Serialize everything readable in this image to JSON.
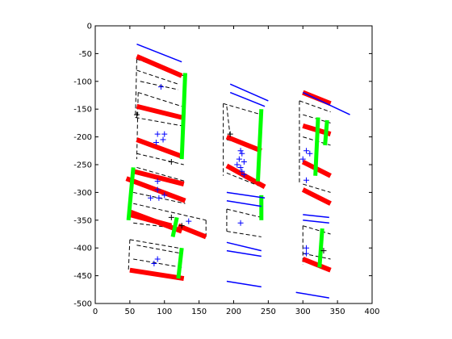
{
  "chart_data": {
    "type": "line",
    "title": "",
    "xlabel": "",
    "ylabel": "",
    "xlim": [
      0,
      400
    ],
    "ylim": [
      -500,
      0
    ],
    "grid": false,
    "legend": "none",
    "x_ticks": [
      "0",
      "50",
      "100",
      "150",
      "200",
      "250",
      "300",
      "350",
      "400"
    ],
    "x_tick_values": [
      0,
      50,
      100,
      150,
      200,
      250,
      300,
      350,
      400
    ],
    "y_ticks": [
      "0",
      "-50",
      "-100",
      "-150",
      "-200",
      "-250",
      "-300",
      "-350",
      "-400",
      "-450",
      "-500"
    ],
    "y_tick_values": [
      0,
      -50,
      -100,
      -150,
      -200,
      -250,
      -300,
      -350,
      -400,
      -450,
      -500
    ],
    "colors": {
      "blue": "#0000ff",
      "red": "#ff0000",
      "green": "#00ff00",
      "black": "#000000"
    },
    "series": [
      {
        "style": "blue-line",
        "segments": [
          [
            [
              60,
              -33
            ],
            [
              125,
              -65
            ]
          ],
          [
            [
              195,
              -105
            ],
            [
              250,
              -135
            ]
          ],
          [
            [
              195,
              -120
            ],
            [
              245,
              -145
            ]
          ],
          [
            [
              300,
              -120
            ],
            [
              368,
              -160
            ]
          ],
          [
            [
              190,
              -300
            ],
            [
              245,
              -310
            ]
          ],
          [
            [
              190,
              -315
            ],
            [
              240,
              -325
            ]
          ],
          [
            [
              300,
              -340
            ],
            [
              338,
              -345
            ]
          ],
          [
            [
              300,
              -350
            ],
            [
              338,
              -355
            ]
          ],
          [
            [
              190,
              -390
            ],
            [
              240,
              -405
            ]
          ],
          [
            [
              190,
              -405
            ],
            [
              240,
              -415
            ]
          ],
          [
            [
              190,
              -460
            ],
            [
              240,
              -470
            ]
          ],
          [
            [
              290,
              -480
            ],
            [
              338,
              -490
            ]
          ]
        ]
      },
      {
        "style": "red-thick",
        "segments": [
          [
            [
              60,
              -55
            ],
            [
              125,
              -90
            ]
          ],
          [
            [
              60,
              -145
            ],
            [
              125,
              -165
            ]
          ],
          [
            [
              60,
              -205
            ],
            [
              125,
              -235
            ]
          ],
          [
            [
              55,
              -262
            ],
            [
              128,
              -285
            ]
          ],
          [
            [
              45,
              -275
            ],
            [
              130,
              -315
            ]
          ],
          [
            [
              50,
              -335
            ],
            [
              125,
              -370
            ]
          ],
          [
            [
              120,
              -360
            ],
            [
              160,
              -380
            ]
          ],
          [
            [
              50,
              -340
            ],
            [
              110,
              -360
            ]
          ],
          [
            [
              50,
              -440
            ],
            [
              128,
              -455
            ]
          ],
          [
            [
              190,
              -200
            ],
            [
              240,
              -225
            ]
          ],
          [
            [
              190,
              -252
            ],
            [
              245,
              -290
            ]
          ],
          [
            [
              300,
              -120
            ],
            [
              340,
              -140
            ]
          ],
          [
            [
              300,
              -180
            ],
            [
              340,
              -195
            ]
          ],
          [
            [
              300,
              -245
            ],
            [
              340,
              -270
            ]
          ],
          [
            [
              300,
              -295
            ],
            [
              340,
              -320
            ]
          ],
          [
            [
              300,
              -420
            ],
            [
              340,
              -440
            ]
          ]
        ]
      },
      {
        "style": "green-thick",
        "segments": [
          [
            [
              130,
              -85
            ],
            [
              125,
              -240
            ]
          ],
          [
            [
              55,
              -255
            ],
            [
              48,
              -350
            ]
          ],
          [
            [
              118,
              -345
            ],
            [
              112,
              -380
            ]
          ],
          [
            [
              125,
              -400
            ],
            [
              120,
              -455
            ]
          ],
          [
            [
              240,
              -150
            ],
            [
              235,
              -280
            ]
          ],
          [
            [
              240,
              -350
            ],
            [
              240,
              -305
            ]
          ],
          [
            [
              322,
              -165
            ],
            [
              318,
              -270
            ]
          ],
          [
            [
              335,
              -170
            ],
            [
              332,
              -215
            ]
          ],
          [
            [
              328,
              -365
            ],
            [
              324,
              -435
            ]
          ]
        ]
      },
      {
        "style": "black-dashed",
        "segments": [
          [
            [
              60,
              -60
            ],
            [
              128,
              -90
            ]
          ],
          [
            [
              60,
              -60
            ],
            [
              58,
              -165
            ]
          ],
          [
            [
              60,
              -80
            ],
            [
              120,
              -105
            ]
          ],
          [
            [
              58,
              -165
            ],
            [
              125,
              -180
            ]
          ],
          [
            [
              62,
              -120
            ],
            [
              125,
              -145
            ]
          ],
          [
            [
              62,
              -120
            ],
            [
              60,
              -240
            ]
          ],
          [
            [
              60,
              -230
            ],
            [
              128,
              -250
            ]
          ],
          [
            [
              65,
              -100
            ],
            [
              120,
              -115
            ]
          ],
          [
            [
              60,
              -255
            ],
            [
              130,
              -280
            ]
          ],
          [
            [
              55,
              -300
            ],
            [
              130,
              -320
            ]
          ],
          [
            [
              55,
              -320
            ],
            [
              160,
              -350
            ]
          ],
          [
            [
              160,
              -350
            ],
            [
              160,
              -380
            ]
          ],
          [
            [
              55,
              -355
            ],
            [
              120,
              -365
            ]
          ],
          [
            [
              50,
              -385
            ],
            [
              120,
              -400
            ]
          ],
          [
            [
              50,
              -385
            ],
            [
              48,
              -440
            ]
          ],
          [
            [
              60,
              -395
            ],
            [
              125,
              -410
            ]
          ],
          [
            [
              55,
              -420
            ],
            [
              125,
              -435
            ]
          ],
          [
            [
              185,
              -140
            ],
            [
              240,
              -160
            ]
          ],
          [
            [
              185,
              -140
            ],
            [
              185,
              -270
            ]
          ],
          [
            [
              190,
              -145
            ],
            [
              195,
              -200
            ]
          ],
          [
            [
              190,
              -205
            ],
            [
              240,
              -220
            ]
          ],
          [
            [
              190,
              -265
            ],
            [
              240,
              -290
            ]
          ],
          [
            [
              190,
              -330
            ],
            [
              240,
              -345
            ]
          ],
          [
            [
              190,
              -330
            ],
            [
              190,
              -370
            ]
          ],
          [
            [
              190,
              -370
            ],
            [
              240,
              -380
            ]
          ],
          [
            [
              295,
              -135
            ],
            [
              340,
              -155
            ]
          ],
          [
            [
              295,
              -135
            ],
            [
              295,
              -285
            ]
          ],
          [
            [
              300,
              -160
            ],
            [
              340,
              -175
            ]
          ],
          [
            [
              300,
              -200
            ],
            [
              340,
              -215
            ]
          ],
          [
            [
              300,
              -285
            ],
            [
              340,
              -300
            ]
          ],
          [
            [
              300,
              -360
            ],
            [
              340,
              -375
            ]
          ],
          [
            [
              300,
              -360
            ],
            [
              300,
              -430
            ]
          ],
          [
            [
              300,
              -410
            ],
            [
              340,
              -420
            ]
          ]
        ]
      },
      {
        "style": "blue-plus",
        "points": [
          [
            95,
            -110
          ],
          [
            90,
            -195
          ],
          [
            100,
            -195
          ],
          [
            88,
            -210
          ],
          [
            98,
            -205
          ],
          [
            90,
            -280
          ],
          [
            90,
            -295
          ],
          [
            80,
            -310
          ],
          [
            92,
            -310
          ],
          [
            100,
            -305
          ],
          [
            135,
            -352
          ],
          [
            90,
            -420
          ],
          [
            85,
            -428
          ],
          [
            210,
            -225
          ],
          [
            212,
            -230
          ],
          [
            208,
            -240
          ],
          [
            215,
            -245
          ],
          [
            205,
            -250
          ],
          [
            210,
            -255
          ],
          [
            212,
            -262
          ],
          [
            215,
            -268
          ],
          [
            210,
            -355
          ],
          [
            305,
            -225
          ],
          [
            310,
            -230
          ],
          [
            300,
            -240
          ],
          [
            305,
            -278
          ],
          [
            305,
            -400
          ],
          [
            305,
            -410
          ]
        ]
      },
      {
        "style": "black-plus",
        "points": [
          [
            60,
            -160
          ],
          [
            110,
            -245
          ],
          [
            110,
            -345
          ],
          [
            125,
            -360
          ],
          [
            195,
            -195
          ],
          [
            330,
            -405
          ]
        ]
      }
    ]
  }
}
